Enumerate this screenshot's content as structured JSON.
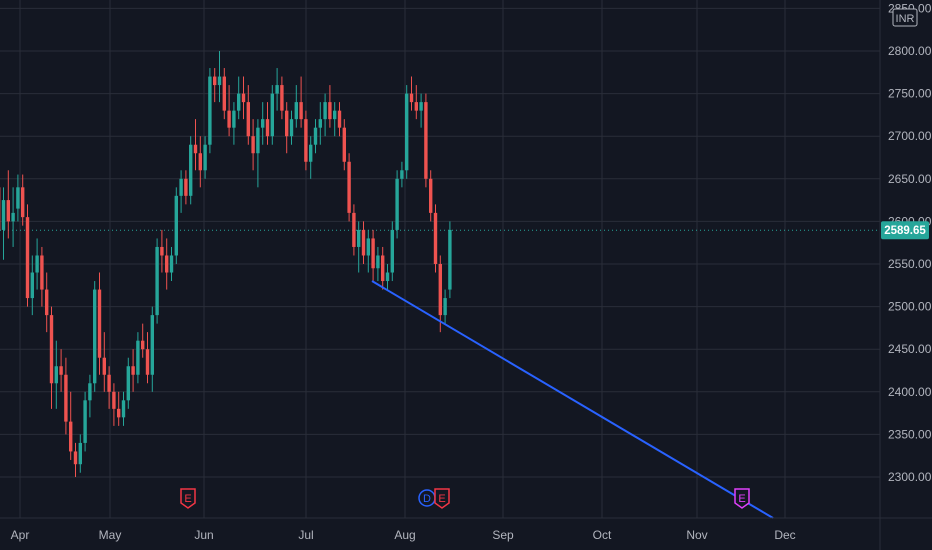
{
  "chart_data": {
    "type": "candlestick",
    "currency": "INR",
    "ylim": [
      2250,
      2850
    ],
    "y_ticks": [
      2300,
      2350,
      2400,
      2450,
      2500,
      2550,
      2600,
      2650,
      2700,
      2750,
      2800,
      2850
    ],
    "y_tick_labels": [
      "2300.00",
      "2350.00",
      "2400.00",
      "2450.00",
      "2500.00",
      "2550.00",
      "2600.00",
      "2650.00",
      "2700.00",
      "2750.00",
      "2800.00",
      "2850.00"
    ],
    "x_labels": [
      "Apr",
      "May",
      "Jun",
      "Jul",
      "Aug",
      "Sep",
      "Oct",
      "Nov",
      "Dec"
    ],
    "last_price": 2589.65,
    "last_price_label": "2589.65",
    "colors": {
      "up": "#26a69a",
      "down": "#ef5350",
      "trendline": "#2962ff",
      "background": "#131722",
      "grid": "#2a2e39",
      "axis_text": "#b2b5be",
      "price_tag": "#26a69a"
    },
    "grid": true,
    "candles": [
      {
        "o": 2640,
        "h": 2655,
        "l": 2570,
        "c": 2590
      },
      {
        "o": 2590,
        "h": 2640,
        "l": 2555,
        "c": 2625
      },
      {
        "o": 2625,
        "h": 2660,
        "l": 2580,
        "c": 2600
      },
      {
        "o": 2600,
        "h": 2640,
        "l": 2570,
        "c": 2610
      },
      {
        "o": 2615,
        "h": 2655,
        "l": 2600,
        "c": 2640
      },
      {
        "o": 2640,
        "h": 2655,
        "l": 2595,
        "c": 2605
      },
      {
        "o": 2605,
        "h": 2620,
        "l": 2500,
        "c": 2510
      },
      {
        "o": 2510,
        "h": 2560,
        "l": 2490,
        "c": 2540
      },
      {
        "o": 2540,
        "h": 2580,
        "l": 2520,
        "c": 2560
      },
      {
        "o": 2560,
        "h": 2570,
        "l": 2500,
        "c": 2520
      },
      {
        "o": 2520,
        "h": 2540,
        "l": 2470,
        "c": 2490
      },
      {
        "o": 2490,
        "h": 2500,
        "l": 2380,
        "c": 2410
      },
      {
        "o": 2410,
        "h": 2460,
        "l": 2380,
        "c": 2430
      },
      {
        "o": 2430,
        "h": 2450,
        "l": 2400,
        "c": 2420
      },
      {
        "o": 2420,
        "h": 2440,
        "l": 2350,
        "c": 2365
      },
      {
        "o": 2365,
        "h": 2400,
        "l": 2320,
        "c": 2330
      },
      {
        "o": 2330,
        "h": 2340,
        "l": 2300,
        "c": 2315
      },
      {
        "o": 2315,
        "h": 2350,
        "l": 2305,
        "c": 2340
      },
      {
        "o": 2340,
        "h": 2400,
        "l": 2330,
        "c": 2390
      },
      {
        "o": 2390,
        "h": 2420,
        "l": 2370,
        "c": 2410
      },
      {
        "o": 2410,
        "h": 2530,
        "l": 2400,
        "c": 2520
      },
      {
        "o": 2520,
        "h": 2540,
        "l": 2420,
        "c": 2440
      },
      {
        "o": 2440,
        "h": 2470,
        "l": 2400,
        "c": 2420
      },
      {
        "o": 2420,
        "h": 2430,
        "l": 2380,
        "c": 2400
      },
      {
        "o": 2400,
        "h": 2410,
        "l": 2360,
        "c": 2380
      },
      {
        "o": 2380,
        "h": 2400,
        "l": 2360,
        "c": 2370
      },
      {
        "o": 2370,
        "h": 2400,
        "l": 2360,
        "c": 2390
      },
      {
        "o": 2390,
        "h": 2440,
        "l": 2380,
        "c": 2430
      },
      {
        "o": 2430,
        "h": 2450,
        "l": 2400,
        "c": 2420
      },
      {
        "o": 2420,
        "h": 2470,
        "l": 2410,
        "c": 2460
      },
      {
        "o": 2460,
        "h": 2480,
        "l": 2440,
        "c": 2450
      },
      {
        "o": 2450,
        "h": 2470,
        "l": 2410,
        "c": 2420
      },
      {
        "o": 2420,
        "h": 2500,
        "l": 2400,
        "c": 2490
      },
      {
        "o": 2490,
        "h": 2580,
        "l": 2480,
        "c": 2570
      },
      {
        "o": 2570,
        "h": 2590,
        "l": 2540,
        "c": 2560
      },
      {
        "o": 2560,
        "h": 2580,
        "l": 2520,
        "c": 2540
      },
      {
        "o": 2540,
        "h": 2570,
        "l": 2530,
        "c": 2560
      },
      {
        "o": 2560,
        "h": 2640,
        "l": 2550,
        "c": 2630
      },
      {
        "o": 2630,
        "h": 2660,
        "l": 2610,
        "c": 2650
      },
      {
        "o": 2650,
        "h": 2660,
        "l": 2620,
        "c": 2630
      },
      {
        "o": 2630,
        "h": 2700,
        "l": 2620,
        "c": 2690
      },
      {
        "o": 2690,
        "h": 2720,
        "l": 2660,
        "c": 2680
      },
      {
        "o": 2680,
        "h": 2700,
        "l": 2640,
        "c": 2660
      },
      {
        "o": 2660,
        "h": 2700,
        "l": 2650,
        "c": 2690
      },
      {
        "o": 2690,
        "h": 2780,
        "l": 2680,
        "c": 2770
      },
      {
        "o": 2770,
        "h": 2780,
        "l": 2740,
        "c": 2760
      },
      {
        "o": 2760,
        "h": 2800,
        "l": 2740,
        "c": 2770
      },
      {
        "o": 2770,
        "h": 2780,
        "l": 2720,
        "c": 2730
      },
      {
        "o": 2730,
        "h": 2760,
        "l": 2700,
        "c": 2710
      },
      {
        "o": 2710,
        "h": 2740,
        "l": 2690,
        "c": 2730
      },
      {
        "o": 2730,
        "h": 2770,
        "l": 2720,
        "c": 2750
      },
      {
        "o": 2750,
        "h": 2770,
        "l": 2720,
        "c": 2740
      },
      {
        "o": 2740,
        "h": 2760,
        "l": 2690,
        "c": 2700
      },
      {
        "o": 2700,
        "h": 2720,
        "l": 2660,
        "c": 2680
      },
      {
        "o": 2680,
        "h": 2720,
        "l": 2640,
        "c": 2710
      },
      {
        "o": 2710,
        "h": 2740,
        "l": 2690,
        "c": 2720
      },
      {
        "o": 2720,
        "h": 2740,
        "l": 2690,
        "c": 2700
      },
      {
        "o": 2700,
        "h": 2760,
        "l": 2690,
        "c": 2750
      },
      {
        "o": 2750,
        "h": 2780,
        "l": 2730,
        "c": 2760
      },
      {
        "o": 2760,
        "h": 2770,
        "l": 2720,
        "c": 2730
      },
      {
        "o": 2730,
        "h": 2740,
        "l": 2680,
        "c": 2700
      },
      {
        "o": 2700,
        "h": 2730,
        "l": 2690,
        "c": 2720
      },
      {
        "o": 2720,
        "h": 2760,
        "l": 2710,
        "c": 2740
      },
      {
        "o": 2740,
        "h": 2770,
        "l": 2710,
        "c": 2720
      },
      {
        "o": 2720,
        "h": 2730,
        "l": 2660,
        "c": 2670
      },
      {
        "o": 2670,
        "h": 2700,
        "l": 2650,
        "c": 2690
      },
      {
        "o": 2690,
        "h": 2720,
        "l": 2680,
        "c": 2710
      },
      {
        "o": 2710,
        "h": 2740,
        "l": 2690,
        "c": 2720
      },
      {
        "o": 2720,
        "h": 2750,
        "l": 2700,
        "c": 2740
      },
      {
        "o": 2740,
        "h": 2760,
        "l": 2710,
        "c": 2720
      },
      {
        "o": 2720,
        "h": 2740,
        "l": 2700,
        "c": 2730
      },
      {
        "o": 2730,
        "h": 2740,
        "l": 2700,
        "c": 2710
      },
      {
        "o": 2710,
        "h": 2720,
        "l": 2660,
        "c": 2670
      },
      {
        "o": 2670,
        "h": 2680,
        "l": 2600,
        "c": 2610
      },
      {
        "o": 2610,
        "h": 2620,
        "l": 2560,
        "c": 2570
      },
      {
        "o": 2570,
        "h": 2600,
        "l": 2540,
        "c": 2590
      },
      {
        "o": 2590,
        "h": 2600,
        "l": 2550,
        "c": 2560
      },
      {
        "o": 2560,
        "h": 2590,
        "l": 2540,
        "c": 2580
      },
      {
        "o": 2580,
        "h": 2590,
        "l": 2530,
        "c": 2545
      },
      {
        "o": 2545,
        "h": 2570,
        "l": 2530,
        "c": 2560
      },
      {
        "o": 2560,
        "h": 2570,
        "l": 2520,
        "c": 2530
      },
      {
        "o": 2530,
        "h": 2550,
        "l": 2520,
        "c": 2540
      },
      {
        "o": 2540,
        "h": 2600,
        "l": 2530,
        "c": 2590
      },
      {
        "o": 2590,
        "h": 2660,
        "l": 2580,
        "c": 2650
      },
      {
        "o": 2650,
        "h": 2670,
        "l": 2640,
        "c": 2660
      },
      {
        "o": 2660,
        "h": 2760,
        "l": 2650,
        "c": 2750
      },
      {
        "o": 2750,
        "h": 2770,
        "l": 2730,
        "c": 2740
      },
      {
        "o": 2740,
        "h": 2760,
        "l": 2720,
        "c": 2730
      },
      {
        "o": 2730,
        "h": 2750,
        "l": 2710,
        "c": 2740
      },
      {
        "o": 2740,
        "h": 2750,
        "l": 2640,
        "c": 2650
      },
      {
        "o": 2650,
        "h": 2660,
        "l": 2600,
        "c": 2610
      },
      {
        "o": 2610,
        "h": 2620,
        "l": 2540,
        "c": 2550
      },
      {
        "o": 2550,
        "h": 2560,
        "l": 2470,
        "c": 2490
      },
      {
        "o": 2490,
        "h": 2520,
        "l": 2480,
        "c": 2510
      },
      {
        "o": 2520,
        "h": 2600,
        "l": 2510,
        "c": 2590
      }
    ],
    "trendline": {
      "points": [
        {
          "x": "2022-07-22",
          "y": 2530
        },
        {
          "x": "2022-12-01",
          "y": 2255
        }
      ]
    },
    "event_markers": [
      {
        "label": "E",
        "color": "#f23645"
      },
      {
        "label": "D",
        "color": "#2962ff"
      },
      {
        "label": "E",
        "color": "#f23645"
      },
      {
        "label": "E",
        "color": "#e040fb"
      }
    ]
  }
}
